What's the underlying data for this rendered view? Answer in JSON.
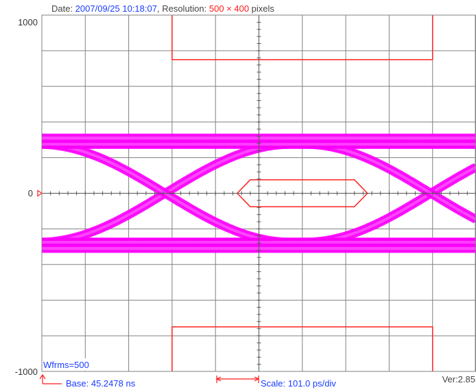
{
  "header": {
    "date_label": "Date: ",
    "date_value": "2007/09/25 10:18:07",
    "sep": ", ",
    "resolution_label": "Resolution: ",
    "resolution_value": "500 × 400",
    "resolution_unit": " pixels"
  },
  "footer": {
    "wfrms": "Wfrms=500",
    "base": "Base: 45.2478 ns",
    "scale": "Scale: 101.0 ps/div",
    "version": "Ver:2.85"
  },
  "colors": {
    "grid": "#808080",
    "axis": "#555555",
    "mask": "#ff2020",
    "trace": "#ff00ff",
    "trace_edge": "#202020",
    "blue": "#1a3cff",
    "red": "#ff1a1a",
    "text": "#333333"
  },
  "chart_data": {
    "type": "eye-diagram",
    "xlim": [
      -3,
      2
    ],
    "ylim": [
      -1000,
      1000
    ],
    "y_tick_labels": [
      "1000",
      "0",
      "-1000"
    ],
    "grid": true,
    "x_divisions": 10,
    "y_divisions": 10,
    "levels": {
      "high": 275,
      "low": -275,
      "high_outer": 310,
      "low_outer": -310
    },
    "crossings": [
      -1.58,
      1.48
    ],
    "eye_center": 0,
    "mask": {
      "top": {
        "x": [
          -1.5,
          1.5
        ],
        "y": [
          750,
          1000
        ]
      },
      "bottom": {
        "x": [
          -1.5,
          1.5
        ],
        "y": [
          -1000,
          -750
        ]
      },
      "center": {
        "x": [
          -0.75,
          0.75
        ],
        "x_inner": [
          -0.6,
          0.6
        ],
        "y": [
          -60,
          60
        ]
      }
    },
    "waveforms": 500,
    "base_ns": 45.2478,
    "scale_ps_per_div": 101.0
  }
}
